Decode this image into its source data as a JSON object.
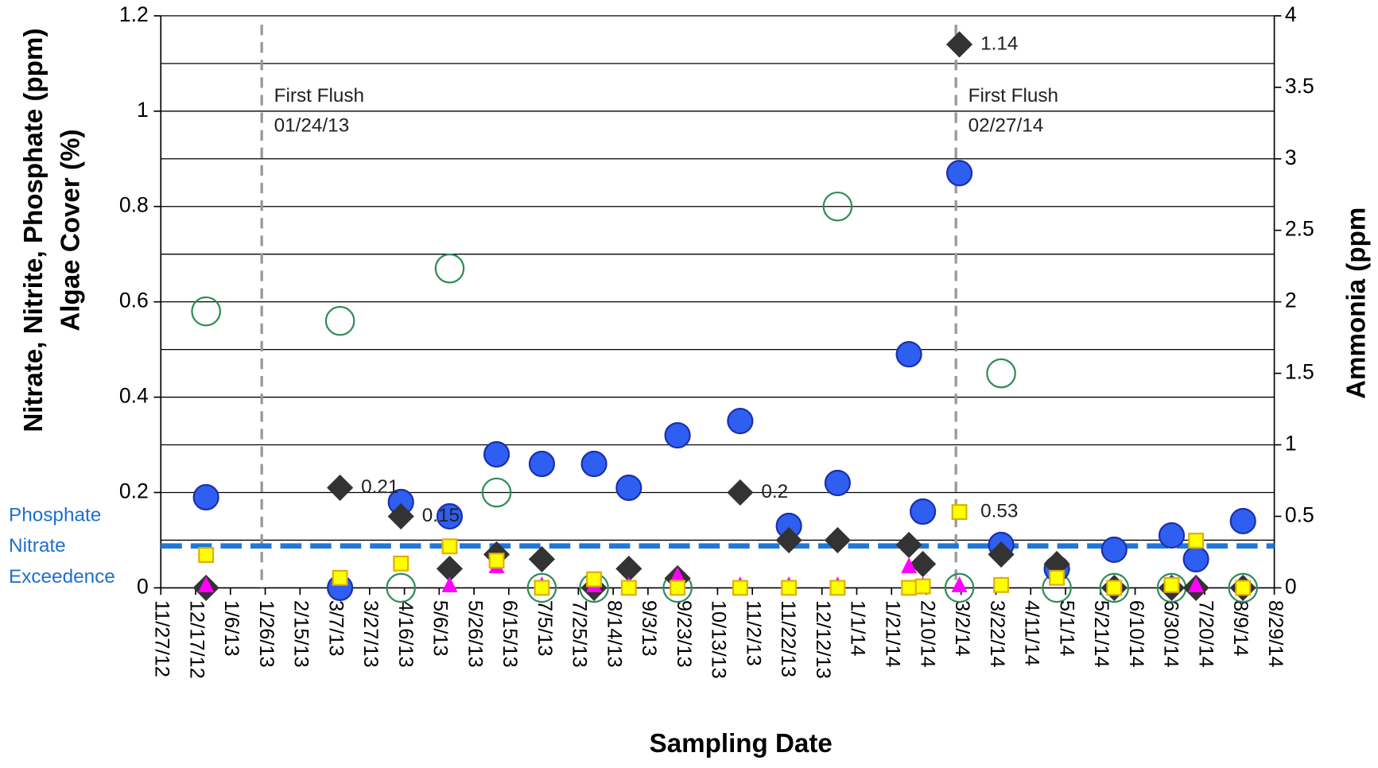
{
  "chart_data": {
    "type": "scatter",
    "x_label": "Sampling Date",
    "y_label": [
      "Nitrate, Nitrite, Phosphate (ppm)",
      "Algae Cover (%)"
    ],
    "y2_label": "Ammonia (ppm",
    "xlim": [
      "11/27/12",
      "8/29/14"
    ],
    "xticks": [
      "11/27/12",
      "12/17/12",
      "1/6/13",
      "1/26/13",
      "2/15/13",
      "3/7/13",
      "3/27/13",
      "4/16/13",
      "5/6/13",
      "5/26/13",
      "6/15/13",
      "7/5/13",
      "7/25/13",
      "8/14/13",
      "9/3/13",
      "9/23/13",
      "10/13/13",
      "11/2/13",
      "11/22/13",
      "12/12/13",
      "1/1/14",
      "1/21/14",
      "2/10/14",
      "3/2/14",
      "3/22/14",
      "4/11/14",
      "5/1/14",
      "5/21/14",
      "6/10/14",
      "6/30/14",
      "7/20/14",
      "8/9/14",
      "8/29/14"
    ],
    "ylim": [
      0,
      1.2
    ],
    "yticks": [
      0,
      0.2,
      0.4,
      0.6,
      0.8,
      1,
      1.2
    ],
    "ygrid": [
      0.1,
      0.2,
      0.3,
      0.4,
      0.5,
      0.6,
      0.7,
      0.8,
      0.9,
      1,
      1.1,
      1.2
    ],
    "y2lim": [
      0,
      4
    ],
    "y2ticks": [
      0,
      0.5,
      1,
      1.5,
      2,
      2.5,
      3,
      3.5,
      4
    ],
    "x": [
      "12/23/12",
      "3/10/13",
      "4/14/13",
      "5/12/13",
      "6/8/13",
      "7/4/13",
      "8/3/13",
      "8/23/13",
      "9/20/13",
      "10/26/13",
      "11/23/13",
      "12/21/13",
      "1/31/14",
      "2/8/14",
      "3/1/14",
      "3/25/14",
      "4/26/14",
      "5/29/14",
      "7/1/14",
      "7/15/14",
      "8/11/14"
    ],
    "series": [
      {
        "marker": "open-circle",
        "color": "#2e8b57",
        "axis": "y",
        "values": [
          0.58,
          0.56,
          0,
          0.67,
          0.2,
          0,
          0,
          null,
          0,
          null,
          null,
          0.8,
          null,
          null,
          0,
          0.45,
          0,
          0,
          0,
          null,
          0
        ]
      },
      {
        "marker": "circle",
        "color": "#2f5ff0",
        "axis": "y",
        "values": [
          0.19,
          0,
          0.18,
          0.15,
          0.28,
          0.26,
          0.26,
          0.21,
          0.32,
          0.35,
          0.13,
          0.22,
          0.49,
          0.16,
          0.87,
          0.09,
          0.04,
          0.08,
          0.11,
          0.06,
          0.14
        ]
      },
      {
        "marker": "diamond",
        "color": "#333333",
        "axis": "y",
        "values": [
          0,
          0.21,
          0.15,
          0.04,
          0.07,
          0.06,
          0,
          0.04,
          0.02,
          0.2,
          0.1,
          0.1,
          0.09,
          0.05,
          1.14,
          0.07,
          0.05,
          0,
          0,
          0,
          0
        ],
        "value_labels": [
          null,
          "0.21",
          "0.15",
          null,
          null,
          null,
          null,
          null,
          null,
          "0.2",
          null,
          null,
          null,
          null,
          "1.14",
          null,
          null,
          null,
          null,
          null,
          null
        ]
      },
      {
        "marker": "triangle",
        "color": "#ff00ff",
        "axis": "y",
        "values": [
          0,
          null,
          null,
          0,
          0.04,
          0,
          0,
          0,
          0.02,
          0,
          0,
          0,
          0.04,
          0,
          0,
          0,
          null,
          null,
          0,
          0,
          null
        ]
      },
      {
        "marker": "square",
        "color": "#ffff00",
        "axis": "y2",
        "values": [
          0.23,
          0.07,
          0.17,
          0.29,
          0.19,
          0,
          0.06,
          0,
          0,
          0,
          0,
          0,
          0,
          0.01,
          0.53,
          0.02,
          0.07,
          0,
          0.02,
          0.33,
          0
        ],
        "value_labels": [
          null,
          null,
          null,
          null,
          null,
          null,
          null,
          null,
          null,
          null,
          null,
          null,
          null,
          null,
          "0.53",
          null,
          null,
          null,
          null,
          null,
          null
        ]
      }
    ],
    "reference_line": {
      "value": 0.088,
      "color": "#1f78d8",
      "label": [
        "Phosphate",
        "Nitrate",
        "Exceedence"
      ]
    },
    "annotations": [
      {
        "text": [
          "First Flush",
          "01/24/13"
        ]
      },
      {
        "text": [
          "First Flush",
          "02/27/14"
        ]
      }
    ]
  }
}
